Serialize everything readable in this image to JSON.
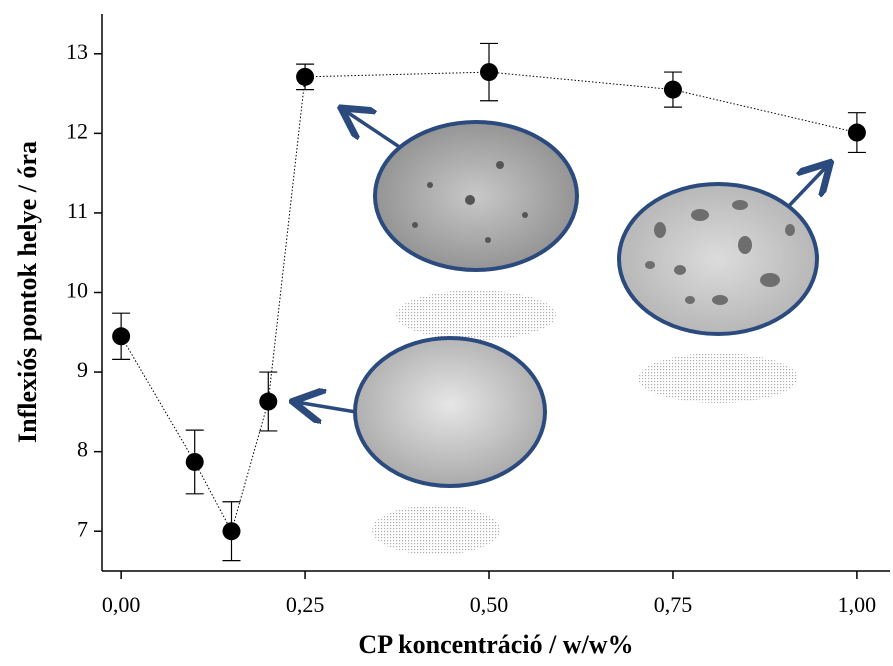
{
  "chart_data": {
    "type": "scatter",
    "x_label": "CP koncentráció / w/w%",
    "y_label": "Inflexiós pontok helye / óra",
    "x": [
      0,
      0.1,
      0.15,
      0.2,
      0.25,
      0.5,
      0.75,
      1.0
    ],
    "values": [
      9.45,
      7.87,
      7.0,
      8.63,
      12.71,
      12.77,
      12.55,
      12.01
    ],
    "errors": [
      0.29,
      0.4,
      0.37,
      0.37,
      0.16,
      0.36,
      0.22,
      0.25
    ],
    "color": "#000000",
    "line_style": "dotted",
    "xlim": [
      -0.026,
      1.045
    ],
    "ylim": [
      6.5,
      13.5
    ],
    "xticks": [
      {
        "value": 0,
        "label": "0,00"
      },
      {
        "value": 0.25,
        "label": "0,25"
      },
      {
        "value": 0.5,
        "label": "0,50"
      },
      {
        "value": 0.75,
        "label": "0,75"
      },
      {
        "value": 1.0,
        "label": "1,00"
      }
    ],
    "yticks": [
      7,
      8,
      9,
      10,
      11,
      12,
      13
    ]
  }
}
